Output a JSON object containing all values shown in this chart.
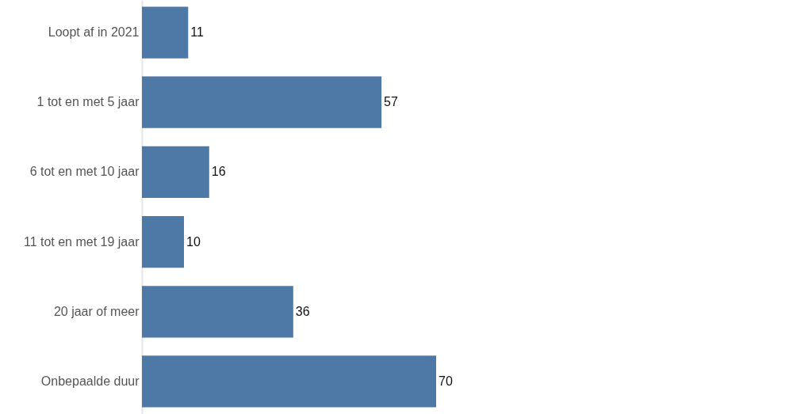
{
  "chart_data": {
    "type": "bar",
    "orientation": "horizontal",
    "categories": [
      "Loopt af in 2021",
      "1 tot en met 5 jaar",
      "6 tot en met 10 jaar",
      "11 tot en met 19 jaar",
      "20 jaar of meer",
      "Onbepaalde duur"
    ],
    "values": [
      11,
      57,
      16,
      10,
      36,
      70
    ],
    "color": "#4e79a7",
    "data_labels": true
  }
}
